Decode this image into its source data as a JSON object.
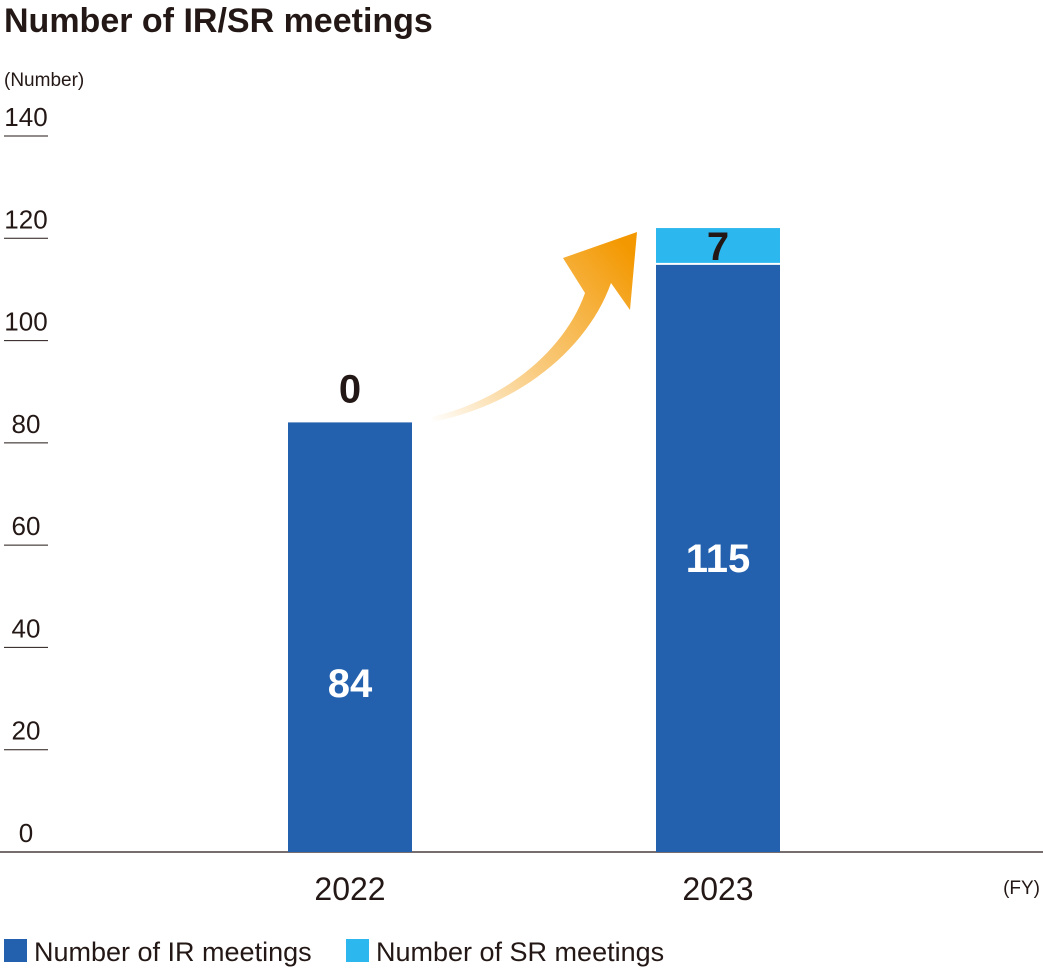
{
  "chart_data": {
    "type": "bar",
    "stacked": true,
    "title": "Number of IR/SR meetings",
    "ylabel": "(Number)",
    "xlabel": "(FY)",
    "categories": [
      "2022",
      "2023"
    ],
    "series": [
      {
        "name": "Number of IR meetings",
        "color": "#2361ae",
        "values": [
          84,
          115
        ]
      },
      {
        "name": "Number of SR meetings",
        "color": "#2cb7ee",
        "values": [
          0,
          7
        ]
      }
    ],
    "bar_labels": {
      "inside": [
        "84",
        "115"
      ],
      "top": [
        "0",
        "7"
      ]
    },
    "ylim": [
      0,
      140
    ],
    "yticks": [
      0,
      20,
      40,
      60,
      80,
      100,
      120,
      140
    ],
    "grid": false,
    "legend_position": "bottom-left",
    "annotation": "orange-growth-arrow"
  }
}
